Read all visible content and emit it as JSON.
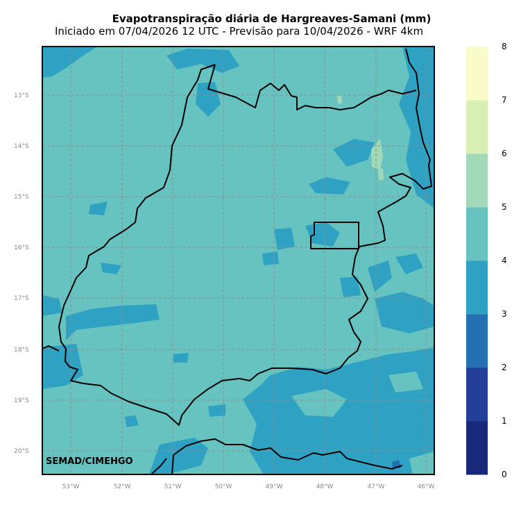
{
  "title": "Evapotranspiração diária de Hargreaves-Samani (mm)",
  "subtitle": "Iniciado em 07/04/2026 12 UTC - Previsão para 10/04/2026 - WRF 4km",
  "credit": "SEMAD/CIMEHGO",
  "lat_ticks": [
    "13°S",
    "14°S",
    "15°S",
    "16°S",
    "17°S",
    "18°S",
    "19°S",
    "20°S"
  ],
  "lon_ticks": [
    "53°W",
    "52°W",
    "51°W",
    "50°W",
    "49°W",
    "48°W",
    "47°W",
    "46°W"
  ],
  "colorbar": {
    "labels": [
      "0",
      "1",
      "2",
      "3",
      "4",
      "5",
      "6",
      "7",
      "8"
    ],
    "colors": [
      "#172978",
      "#233f97",
      "#2371b2",
      "#2fa2c4",
      "#66c3bf",
      "#a2dab9",
      "#d8f0b3",
      "#f7fcc8"
    ]
  },
  "colors": {
    "dominant": "#66c3bf",
    "secondary": "#2fa2c4",
    "grid": "#8c8c8c",
    "border": "#000000"
  }
}
